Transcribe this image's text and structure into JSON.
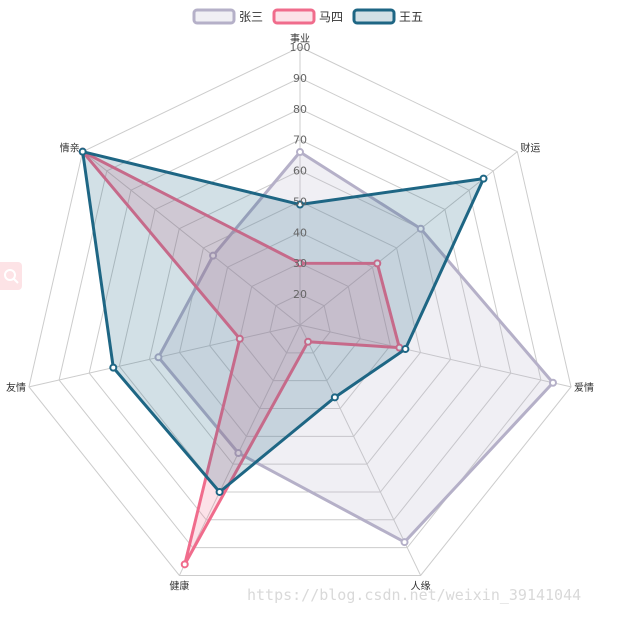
{
  "chart_data": {
    "type": "radar",
    "indicators": [
      "事业",
      "财运",
      "爱情",
      "人缘",
      "健康",
      "友情",
      "情亲"
    ],
    "tick_labels": [
      "20",
      "30",
      "40",
      "50",
      "60",
      "70",
      "80",
      "90",
      "100"
    ],
    "min": 10,
    "max": 100,
    "grid": true,
    "legend_position": "top-center",
    "series": [
      {
        "name": "张三",
        "color": "#b5b0c8",
        "values": [
          66,
          60,
          94,
          88,
          56,
          57,
          46
        ]
      },
      {
        "name": "马四",
        "color": "#f06c8c",
        "values": [
          30,
          42,
          43,
          16,
          96,
          30,
          100
        ]
      },
      {
        "name": "王五",
        "color": "#1e6684",
        "values": [
          49,
          86,
          45,
          36,
          70,
          72,
          100
        ]
      }
    ]
  },
  "watermark": "https://blog.csdn.net/weixin_39141044",
  "side_tool_icon": "search-icon"
}
